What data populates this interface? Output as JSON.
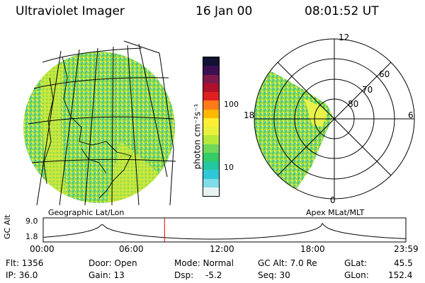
{
  "header": {
    "title": "Ultraviolet Imager",
    "date": "16 Jan 00",
    "time": "08:01:52 UT"
  },
  "left_panel": {
    "caption": "Geographic Lat/Lon"
  },
  "right_panel": {
    "caption": "Apex MLat/MLT",
    "mlt_labels": {
      "top": "12",
      "left": "18",
      "right": "6",
      "bottom": "0"
    },
    "lat_rings": [
      "60",
      "70",
      "80"
    ]
  },
  "colorbar": {
    "unit_label": "photon cm⁻²s⁻¹",
    "ticks": [
      "100",
      "10"
    ],
    "colors": [
      "#111133",
      "#3a1050",
      "#7b1a4a",
      "#b0102a",
      "#e02020",
      "#ff7a1a",
      "#ffb800",
      "#ffee33",
      "#e8f23a",
      "#b8e83a",
      "#6fd85a",
      "#33cc66",
      "#22c8a0",
      "#30c8d8",
      "#80dce8",
      "#e8f4f4"
    ]
  },
  "timeline": {
    "ylabel": "GC Alt",
    "y_ticks": [
      "9.0",
      "1.8"
    ],
    "x_ticks": [
      "00:00",
      "06:00",
      "12:00",
      "18:00",
      "23:59"
    ],
    "marker_hour": 8.03
  },
  "status": {
    "flt": "Flt: 1356",
    "ip": "IP: 36.0",
    "door": "Door: Open",
    "gain": "Gain: 13",
    "mode": "Mode: Normal",
    "dsp": "Dsp:",
    "dsp_val": "-5.2",
    "gcalt": "GC Alt: 7.0 Re",
    "seq": "Seq: 30",
    "glat": "GLat:",
    "glat_val": "45.5",
    "glon": "GLon:",
    "glon_val": "152.4"
  }
}
